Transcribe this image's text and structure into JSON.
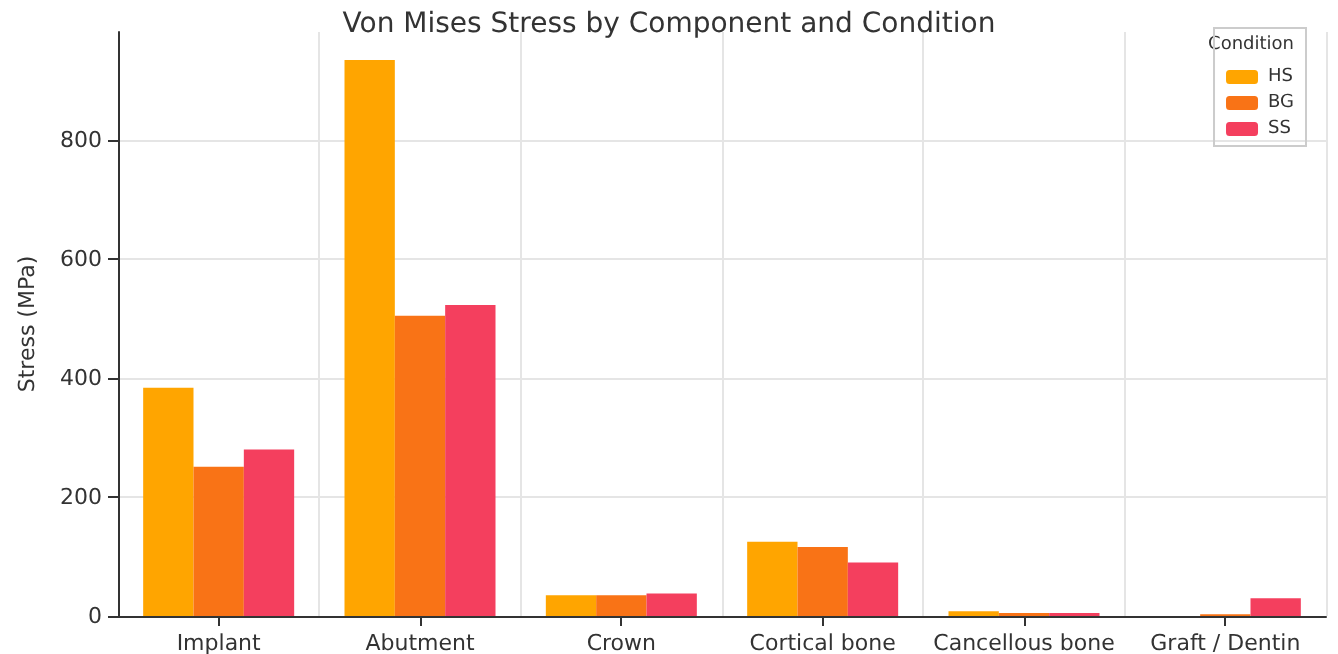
{
  "chart_data": {
    "type": "bar",
    "title": "Von Mises Stress by Component and Condition",
    "ylabel": "Stress (MPa)",
    "legend_title": "Condition",
    "categories": [
      "Implant",
      "Abutment",
      "Crown",
      "Cortical bone",
      "Cancellous bone",
      "Graft / Dentin"
    ],
    "series": [
      {
        "name": "HS",
        "color": "#ffa500",
        "values": [
          384,
          935,
          35,
          125,
          8,
          0
        ]
      },
      {
        "name": "BG",
        "color": "#f97316",
        "values": [
          251,
          505,
          35,
          116,
          5,
          3
        ]
      },
      {
        "name": "SS",
        "color": "#f43f5e",
        "values": [
          280,
          523,
          38,
          90,
          5,
          30
        ]
      }
    ],
    "ylim": [
      0,
      982
    ],
    "yticks": [
      0,
      200,
      400,
      600,
      800
    ],
    "grid": true,
    "legend": "top right"
  }
}
